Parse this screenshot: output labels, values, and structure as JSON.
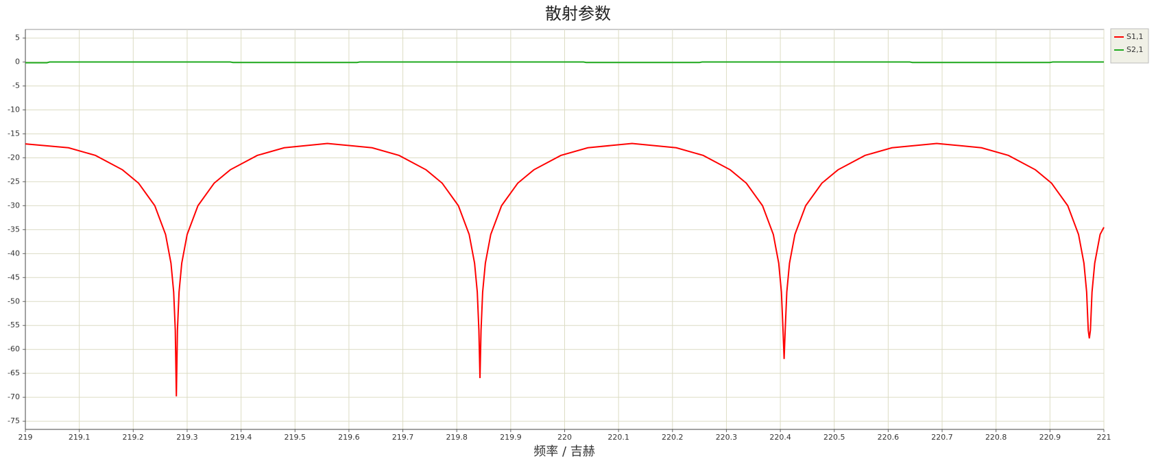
{
  "chart_data": {
    "type": "line",
    "title": "散射参数",
    "x_label": "频率 / 吉赫",
    "xlim": [
      219,
      221
    ],
    "ylim": [
      -76.7,
      6.8
    ],
    "xticks": [
      219,
      219.1,
      219.2,
      219.3,
      219.4,
      219.5,
      219.6,
      219.7,
      219.8,
      219.9,
      220,
      220.1,
      220.2,
      220.3,
      220.4,
      220.5,
      220.6,
      220.7,
      220.8,
      220.9,
      221
    ],
    "yticks": [
      5,
      0,
      -5,
      -10,
      -15,
      -20,
      -25,
      -30,
      -35,
      -40,
      -45,
      -50,
      -55,
      -60,
      -65,
      -70,
      -75
    ],
    "grid": true,
    "legend": "right-top",
    "series": [
      {
        "name": "S1,1",
        "color": "#ff0000",
        "x": [
          219.0,
          219.08,
          219.13,
          219.18,
          219.21,
          219.24,
          219.26,
          219.27,
          219.275,
          219.278,
          219.28,
          219.282,
          219.285,
          219.29,
          219.3,
          219.32,
          219.35,
          219.38,
          219.43,
          219.48,
          219.56,
          219.643,
          219.693,
          219.743,
          219.773,
          219.803,
          219.823,
          219.833,
          219.838,
          219.841,
          219.843,
          219.845,
          219.848,
          219.853,
          219.863,
          219.883,
          219.913,
          219.943,
          219.993,
          220.043,
          220.125,
          220.207,
          220.257,
          220.307,
          220.337,
          220.367,
          220.387,
          220.397,
          220.402,
          220.405,
          220.407,
          220.409,
          220.412,
          220.417,
          220.427,
          220.447,
          220.477,
          220.507,
          220.557,
          220.607,
          220.69,
          220.773,
          220.823,
          220.873,
          220.903,
          220.933,
          220.953,
          220.963,
          220.968,
          220.971,
          220.973,
          220.975,
          220.978,
          220.983,
          220.993,
          221.0
        ],
        "values": [
          -17.1,
          -17.9,
          -19.5,
          -22.5,
          -25.3,
          -30,
          -36,
          -42,
          -48,
          -56,
          -69.8,
          -56,
          -48,
          -42,
          -36,
          -30,
          -25.3,
          -22.5,
          -19.5,
          -17.9,
          -17.0,
          -17.9,
          -19.5,
          -22.5,
          -25.3,
          -30,
          -36,
          -42,
          -48,
          -56,
          -66,
          -56,
          -48,
          -42,
          -36,
          -30,
          -25.3,
          -22.5,
          -19.5,
          -17.9,
          -17.0,
          -17.9,
          -19.5,
          -22.5,
          -25.3,
          -30,
          -36,
          -42,
          -48,
          -56,
          -62,
          -56,
          -48,
          -42,
          -36,
          -30,
          -25.3,
          -22.5,
          -19.5,
          -17.9,
          -17.0,
          -17.9,
          -19.5,
          -22.5,
          -25.3,
          -30,
          -36,
          -42,
          -48,
          -56,
          -57.7,
          -56,
          -48,
          -42,
          -36,
          -34.5
        ]
      },
      {
        "name": "S2,1",
        "color": "#1faa1f",
        "x": [
          219.0,
          219.04,
          219.045,
          219.38,
          219.385,
          219.615,
          219.62,
          220.035,
          220.04,
          220.25,
          220.255,
          220.64,
          220.645,
          220.9,
          220.905,
          221.0
        ],
        "values": [
          -0.15,
          -0.15,
          0,
          0,
          -0.1,
          -0.1,
          0,
          0,
          -0.1,
          -0.1,
          0,
          0,
          -0.1,
          -0.1,
          0,
          0
        ]
      }
    ]
  }
}
